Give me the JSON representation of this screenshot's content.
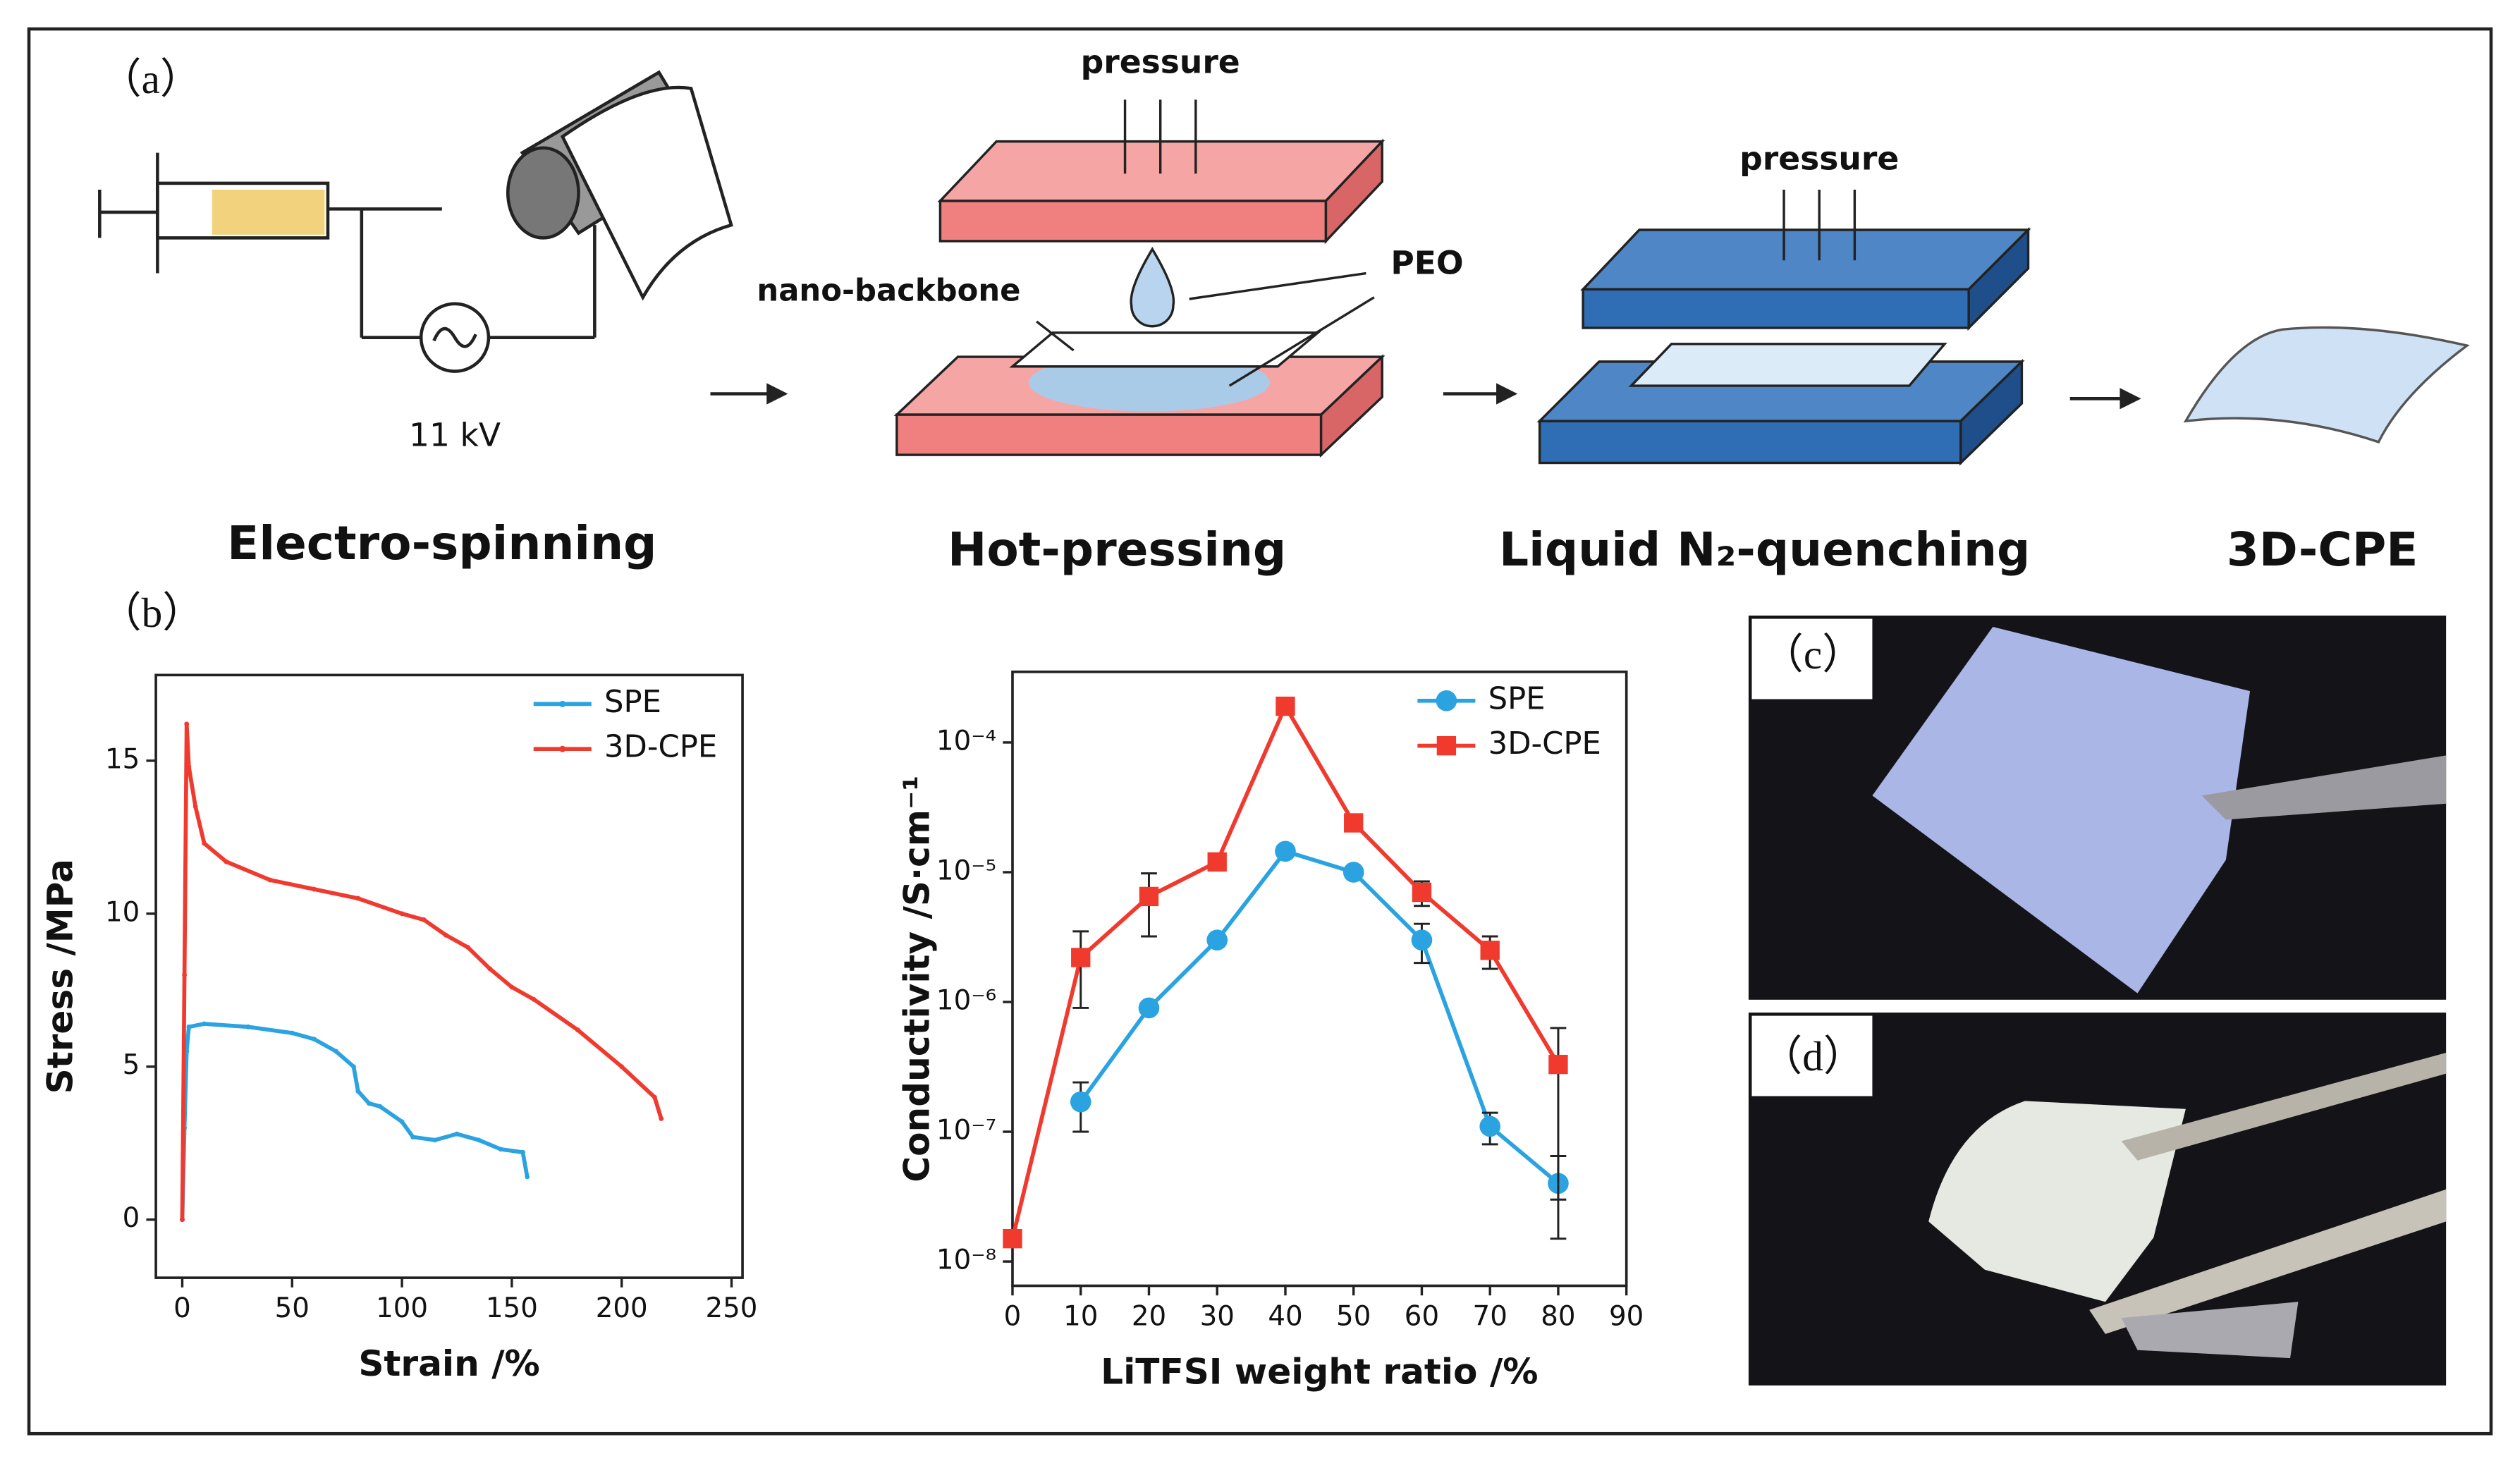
{
  "panel_a": {
    "label": "（a）",
    "voltage": "11 kV",
    "pressure_1": "pressure",
    "pressure_2": "pressure",
    "nano_backbone": "nano-backbone",
    "peo": "PEO",
    "stages": [
      "Electro-spinning",
      "Hot-pressing",
      "Liquid N₂-quenching",
      "3D-CPE"
    ]
  },
  "panel_b": {
    "label": "（b）"
  },
  "panel_c": {
    "label": "（c）"
  },
  "panel_d": {
    "label": "（d）"
  },
  "chart_data": [
    {
      "type": "line",
      "xlabel": "Strain /%",
      "ylabel": "Stress /MPa",
      "xlim": [
        -12,
        255
      ],
      "xticks": [
        0,
        50,
        100,
        150,
        200,
        250
      ],
      "ylim": [
        -1.9,
        17.8
      ],
      "yticks": [
        0,
        5,
        10,
        15
      ],
      "legend": "upper right",
      "series": [
        {
          "name": "SPE",
          "color": "#2aa3e0",
          "marker": "dot",
          "x": [
            0,
            1,
            2,
            3,
            10,
            30,
            50,
            60,
            70,
            78,
            80,
            85,
            90,
            100,
            105,
            115,
            125,
            135,
            145,
            155,
            157
          ],
          "values": [
            0,
            3,
            5.5,
            6.3,
            6.4,
            6.3,
            6.1,
            5.9,
            5.5,
            5.0,
            4.2,
            3.8,
            3.7,
            3.2,
            2.7,
            2.6,
            2.8,
            2.6,
            2.3,
            2.2,
            1.4
          ]
        },
        {
          "name": "3D-CPE",
          "color": "#f03a2e",
          "marker": "dot",
          "x": [
            0,
            1,
            2,
            3,
            6,
            10,
            20,
            40,
            60,
            80,
            100,
            110,
            120,
            130,
            140,
            150,
            160,
            180,
            200,
            215,
            218
          ],
          "values": [
            0,
            8,
            16.2,
            14.8,
            13.5,
            12.3,
            11.7,
            11.1,
            10.8,
            10.5,
            10.0,
            9.8,
            9.3,
            8.9,
            8.2,
            7.6,
            7.2,
            6.2,
            5.0,
            4.0,
            3.3
          ]
        }
      ]
    },
    {
      "type": "line",
      "xlabel": "LiTFSI weight ratio /%",
      "ylabel": "Conductivity /S·cm⁻¹",
      "log_y": true,
      "xlim": [
        0,
        90
      ],
      "xticks": [
        0,
        10,
        20,
        30,
        40,
        50,
        60,
        70,
        80,
        90
      ],
      "ylim": [
        6.5e-09,
        0.00035
      ],
      "yticks": [
        {
          "value": 1e-08,
          "label": "10⁻⁸"
        },
        {
          "value": 1e-07,
          "label": "10⁻⁷"
        },
        {
          "value": 1e-06,
          "label": "10⁻⁶"
        },
        {
          "value": 1e-05,
          "label": "10⁻⁵"
        },
        {
          "value": 0.0001,
          "label": "10⁻⁴"
        }
      ],
      "legend": "upper right",
      "series": [
        {
          "name": "SPE",
          "color": "#2aa3e0",
          "marker": "circle",
          "x": [
            10,
            20,
            30,
            40,
            50,
            60,
            70,
            80
          ],
          "values": [
            1.7e-07,
            9e-07,
            3e-06,
            1.45e-05,
            1e-05,
            3e-06,
            1.1e-07,
            4e-08
          ],
          "errors": [
            7e-08,
            5e-08,
            3e-07,
            1e-06,
            1e-06,
            1e-06,
            3e-08,
            2.5e-08
          ]
        },
        {
          "name": "3D-CPE",
          "color": "#f03a2e",
          "marker": "square",
          "x": [
            0,
            10,
            20,
            30,
            40,
            50,
            60,
            70,
            80
          ],
          "values": [
            1.5e-08,
            2.2e-06,
            6.5e-06,
            1.2e-05,
            0.00019,
            2.4e-05,
            7e-06,
            2.5e-06,
            3.3e-07
          ],
          "errors": [
            2e-09,
            1.3e-06,
            3.3e-06,
            1.5e-06,
            2e-05,
            2e-06,
            1.5e-06,
            7e-07,
            3e-07
          ]
        }
      ]
    }
  ]
}
